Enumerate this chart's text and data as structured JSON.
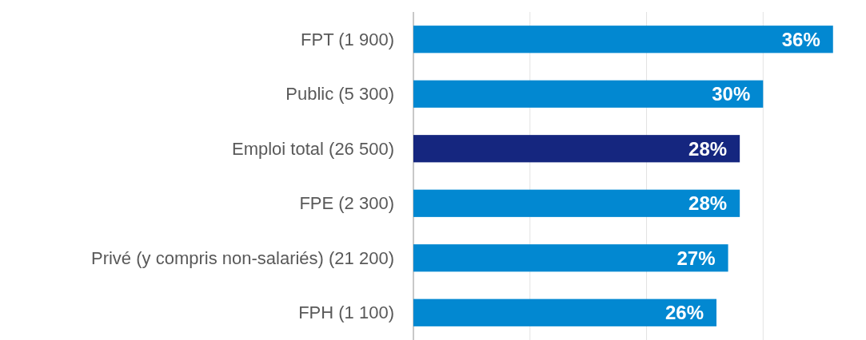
{
  "chart_data": {
    "type": "bar",
    "orientation": "horizontal",
    "categories": [
      "FPT (1 900)",
      "Public (5 300)",
      "Emploi total (26 500)",
      "FPE (2 300)",
      "Privé (y compris non-salariés) (21 200)",
      "FPH (1 100)"
    ],
    "values": [
      36,
      30,
      28,
      28,
      27,
      26
    ],
    "colors": [
      "#0288d1",
      "#0288d1",
      "#15267f",
      "#0288d1",
      "#0288d1",
      "#0288d1"
    ],
    "value_labels": [
      "36%",
      "30%",
      "28%",
      "28%",
      "27%",
      "26%"
    ],
    "xticks": [
      {
        "value": 0,
        "label": null
      },
      {
        "value": 10,
        "label": null
      },
      {
        "value": 20,
        "label": null
      },
      {
        "value": 30,
        "label": null
      }
    ],
    "grid": "x",
    "tick_labels": "y"
  }
}
